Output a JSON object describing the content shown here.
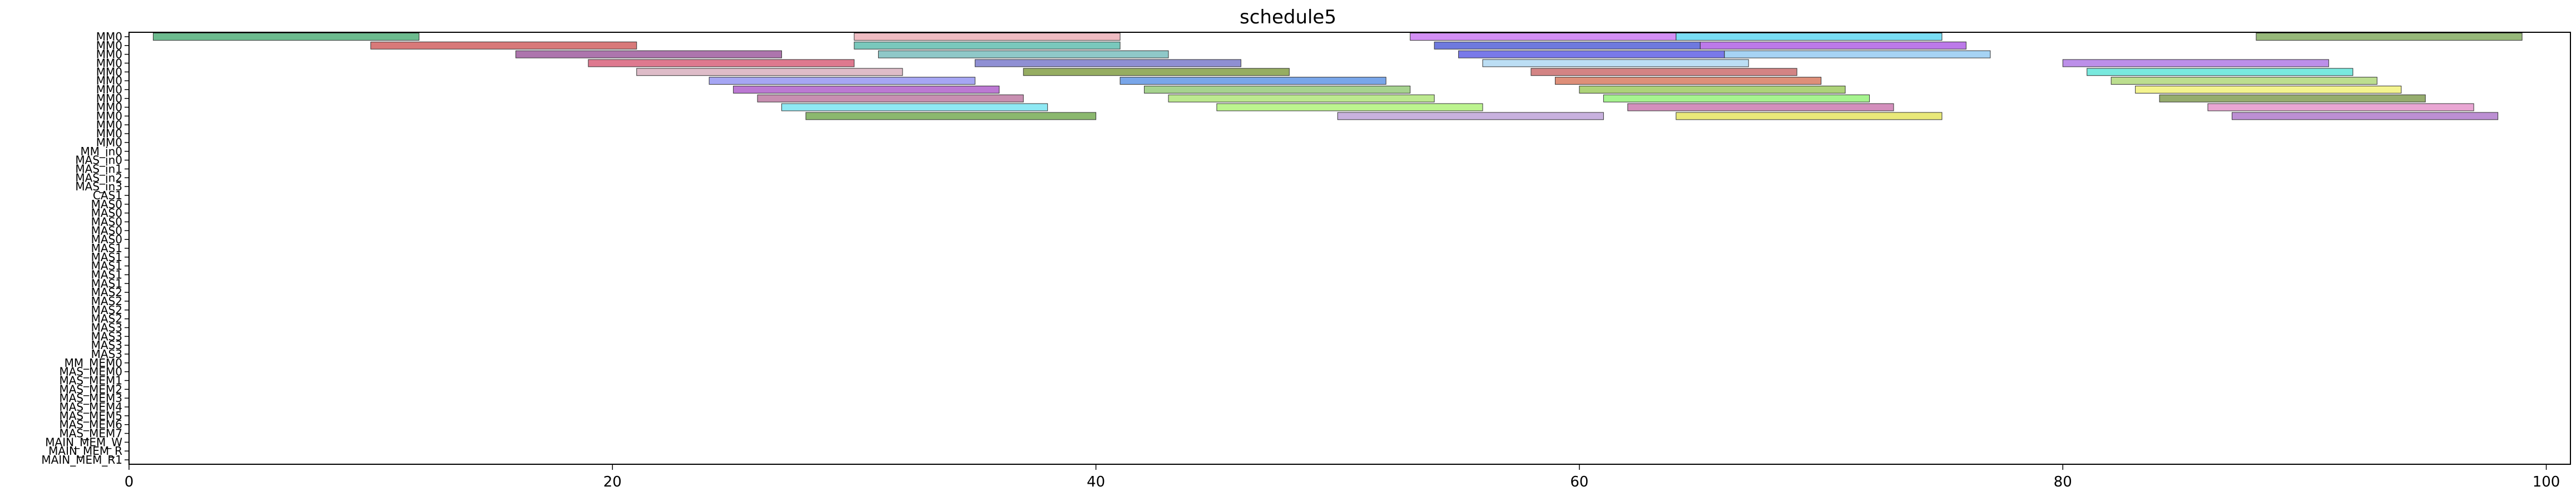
{
  "chart_data": {
    "type": "bar",
    "subtype": "gantt",
    "title": "schedule5",
    "xlabel": "",
    "ylabel": "",
    "xlim": [
      0,
      101
    ],
    "x_ticks": [
      0,
      20,
      40,
      60,
      80,
      100
    ],
    "grid": false,
    "legend": "none",
    "rows": [
      "MM0",
      "MM0",
      "MM0",
      "MM0",
      "MM0",
      "MM0",
      "MM0",
      "MM0",
      "MM0",
      "MM0",
      "MM0",
      "MM0",
      "MM0",
      "MM_in0",
      "MAS_in0",
      "MAS_in1",
      "MAS_in2",
      "MAS_in3",
      "CAS1",
      "MAS0",
      "MAS0",
      "MAS0",
      "MAS0",
      "MAS0",
      "MAS1",
      "MAS1",
      "MAS1",
      "MAS1",
      "MAS1",
      "MAS2",
      "MAS2",
      "MAS2",
      "MAS2",
      "MAS3",
      "MAS3",
      "MAS3",
      "MAS3",
      "MM_MEM0",
      "MAS_MEM0",
      "MAS_MEM1",
      "MAS_MEM2",
      "MAS_MEM3",
      "MAS_MEM4",
      "MAS_MEM5",
      "MAS_MEM6",
      "MAS_MEM7",
      "MAIN_MEM_W",
      "MAIN_MEM_R",
      "MAIN_MEM_R1"
    ],
    "tasks": [
      {
        "row": 0,
        "start": 1,
        "end": 12,
        "color": "#2e9e5e"
      },
      {
        "row": 0,
        "start": 30,
        "end": 41,
        "color": "#e8a0a8"
      },
      {
        "row": 0,
        "start": 53,
        "end": 64,
        "color": "#c060f0"
      },
      {
        "row": 0,
        "start": 64,
        "end": 75,
        "color": "#40d0f0"
      },
      {
        "row": 0,
        "start": 88,
        "end": 99,
        "color": "#6a9a40"
      },
      {
        "row": 1,
        "start": 10,
        "end": 21,
        "color": "#c84040"
      },
      {
        "row": 1,
        "start": 30,
        "end": 41,
        "color": "#40b0a0"
      },
      {
        "row": 1,
        "start": 54,
        "end": 65,
        "color": "#3040d0"
      },
      {
        "row": 1,
        "start": 65,
        "end": 76,
        "color": "#a040e0"
      },
      {
        "row": 2,
        "start": 16,
        "end": 27,
        "color": "#8a3a8a"
      },
      {
        "row": 2,
        "start": 31,
        "end": 43,
        "color": "#60b0b0"
      },
      {
        "row": 2,
        "start": 55,
        "end": 66,
        "color": "#4040e0"
      },
      {
        "row": 2,
        "start": 66,
        "end": 77,
        "color": "#80c0f0"
      },
      {
        "row": 3,
        "start": 19,
        "end": 30,
        "color": "#d04060"
      },
      {
        "row": 3,
        "start": 35,
        "end": 46,
        "color": "#6060c0"
      },
      {
        "row": 3,
        "start": 56,
        "end": 67,
        "color": "#a0d0f0"
      },
      {
        "row": 3,
        "start": 80,
        "end": 91,
        "color": "#a060e0"
      },
      {
        "row": 4,
        "start": 21,
        "end": 32,
        "color": "#d0a0b0"
      },
      {
        "row": 4,
        "start": 37,
        "end": 48,
        "color": "#6a8a20"
      },
      {
        "row": 4,
        "start": 58,
        "end": 69,
        "color": "#c05050"
      },
      {
        "row": 4,
        "start": 81,
        "end": 92,
        "color": "#40e0d0"
      },
      {
        "row": 5,
        "start": 24,
        "end": 35,
        "color": "#8080f0"
      },
      {
        "row": 5,
        "start": 41,
        "end": 52,
        "color": "#4080e0"
      },
      {
        "row": 5,
        "start": 59,
        "end": 70,
        "color": "#d06040"
      },
      {
        "row": 5,
        "start": 82,
        "end": 93,
        "color": "#a0d060"
      },
      {
        "row": 6,
        "start": 25,
        "end": 36,
        "color": "#a040c0"
      },
      {
        "row": 6,
        "start": 42,
        "end": 53,
        "color": "#80c060"
      },
      {
        "row": 6,
        "start": 60,
        "end": 71,
        "color": "#8ac040"
      },
      {
        "row": 6,
        "start": 83,
        "end": 94,
        "color": "#f0f060"
      },
      {
        "row": 7,
        "start": 26,
        "end": 37,
        "color": "#b06090"
      },
      {
        "row": 7,
        "start": 43,
        "end": 54,
        "color": "#a0e060"
      },
      {
        "row": 7,
        "start": 61,
        "end": 72,
        "color": "#80f060"
      },
      {
        "row": 7,
        "start": 84,
        "end": 95,
        "color": "#6a8a30"
      },
      {
        "row": 8,
        "start": 27,
        "end": 38,
        "color": "#60e0f0"
      },
      {
        "row": 8,
        "start": 45,
        "end": 56,
        "color": "#a0f060"
      },
      {
        "row": 8,
        "start": 62,
        "end": 73,
        "color": "#c060a0"
      },
      {
        "row": 8,
        "start": 86,
        "end": 97,
        "color": "#e080c0"
      },
      {
        "row": 9,
        "start": 28,
        "end": 40,
        "color": "#5a9a30"
      },
      {
        "row": 9,
        "start": 50,
        "end": 61,
        "color": "#b090d0"
      },
      {
        "row": 9,
        "start": 64,
        "end": 75,
        "color": "#e0e040"
      },
      {
        "row": 9,
        "start": 87,
        "end": 98,
        "color": "#a060c0"
      }
    ]
  }
}
